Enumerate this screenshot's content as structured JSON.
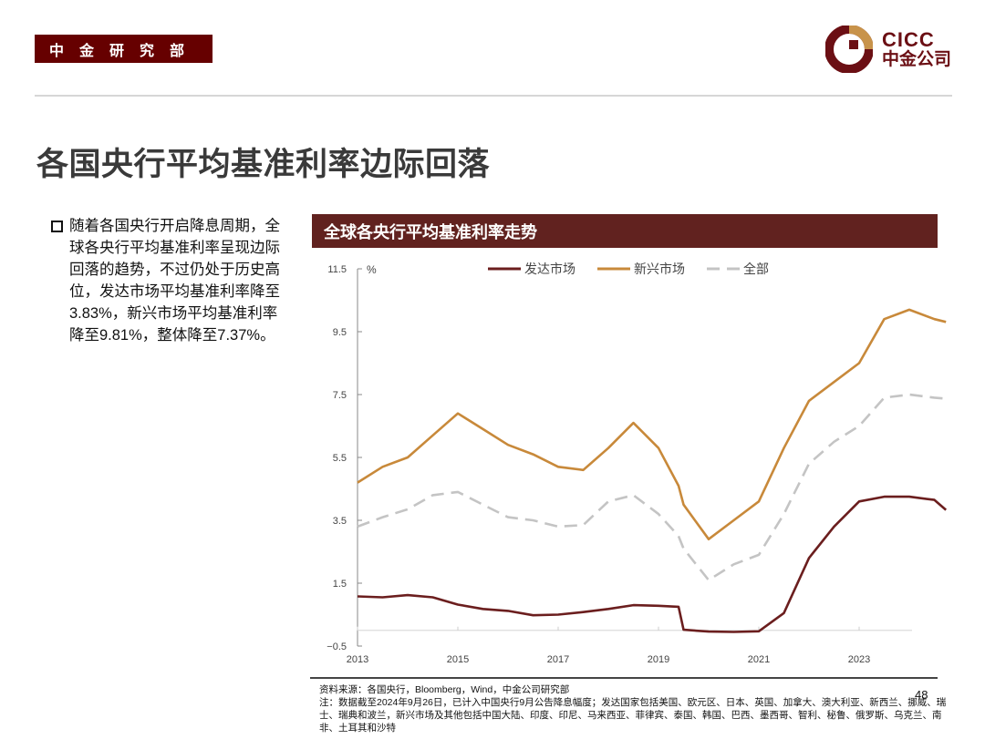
{
  "header": {
    "department": "中金研究部",
    "logo": {
      "en": "CICC",
      "cn": "中金公司",
      "primary_color": "#6b0f14",
      "accent_color": "#c8934a"
    }
  },
  "page": {
    "title": "各国央行平均基准利率边际回落",
    "number": "48"
  },
  "bullet": {
    "text": "随着各国央行开启降息周期，全球各央行平均基准利率呈现边际回落的趋势，不过仍处于历史高位，发达市场平均基准利率降至3.83%，新兴市场平均基准利率降至9.81%，整体降至7.37%。"
  },
  "chart": {
    "header": "全球各央行平均基准利率走势",
    "unit": "%",
    "legend": [
      {
        "label": "发达市场",
        "color": "#6b1e1e",
        "style": "solid"
      },
      {
        "label": "新兴市场",
        "color": "#c8893a",
        "style": "solid"
      },
      {
        "label": "全部",
        "color": "#c4c4c4",
        "style": "dashed"
      }
    ],
    "y_ticks": [
      "11.5",
      "9.5",
      "7.5",
      "5.5",
      "3.5",
      "1.5",
      "−0.5"
    ],
    "x_ticks": [
      "2013",
      "2015",
      "2017",
      "2019",
      "2021",
      "2023"
    ]
  },
  "chart_data": {
    "type": "line",
    "title": "全球各央行平均基准利率走势",
    "xlabel": "",
    "ylabel": "%",
    "ylim": [
      -0.5,
      11.5
    ],
    "y_ticks": [
      -0.5,
      1.5,
      3.5,
      5.5,
      7.5,
      9.5,
      11.5
    ],
    "x_ticks": [
      2013,
      2015,
      2017,
      2019,
      2021,
      2023
    ],
    "xlim": [
      2013,
      2024.75
    ],
    "legend_position": "top",
    "grid": false,
    "x": [
      2013.0,
      2013.5,
      2014.0,
      2014.5,
      2015.0,
      2015.5,
      2016.0,
      2016.5,
      2017.0,
      2017.5,
      2018.0,
      2018.5,
      2019.0,
      2019.4,
      2019.5,
      2020.0,
      2020.5,
      2021.0,
      2021.5,
      2022.0,
      2022.5,
      2023.0,
      2023.5,
      2024.0,
      2024.5,
      2024.73
    ],
    "series": [
      {
        "name": "发达市场",
        "values": [
          1.08,
          1.05,
          1.12,
          1.05,
          0.82,
          0.68,
          0.62,
          0.48,
          0.5,
          0.58,
          0.68,
          0.8,
          0.78,
          0.75,
          0.02,
          -0.04,
          -0.05,
          -0.03,
          0.55,
          2.3,
          3.3,
          4.1,
          4.25,
          4.25,
          4.15,
          3.83
        ]
      },
      {
        "name": "新兴市场",
        "values": [
          4.7,
          5.2,
          5.5,
          6.2,
          6.9,
          6.4,
          5.9,
          5.6,
          5.2,
          5.1,
          5.8,
          6.6,
          5.8,
          4.6,
          4.0,
          2.9,
          3.5,
          4.1,
          5.8,
          7.3,
          7.9,
          8.5,
          9.9,
          10.2,
          9.9,
          9.81
        ]
      },
      {
        "name": "全部",
        "values": [
          3.3,
          3.6,
          3.85,
          4.3,
          4.4,
          4.0,
          3.6,
          3.5,
          3.3,
          3.35,
          4.1,
          4.3,
          3.7,
          3.0,
          2.6,
          1.6,
          2.1,
          2.4,
          3.7,
          5.3,
          6.0,
          6.5,
          7.4,
          7.5,
          7.4,
          7.37
        ]
      }
    ]
  },
  "footer": {
    "source": "资料来源：各国央行，Bloomberg，Wind，中金公司研究部",
    "note": "注：数据截至2024年9月26日，已计入中国央行9月公告降息幅度；发达国家包括美国、欧元区、日本、英国、加拿大、澳大利亚、新西兰、挪威、瑞士、瑞典和波兰，新兴市场及其他包括中国大陆、印度、印尼、马来西亚、菲律宾、泰国、韩国、巴西、墨西哥、智利、秘鲁、俄罗斯、乌克兰、南非、土耳其和沙特"
  }
}
